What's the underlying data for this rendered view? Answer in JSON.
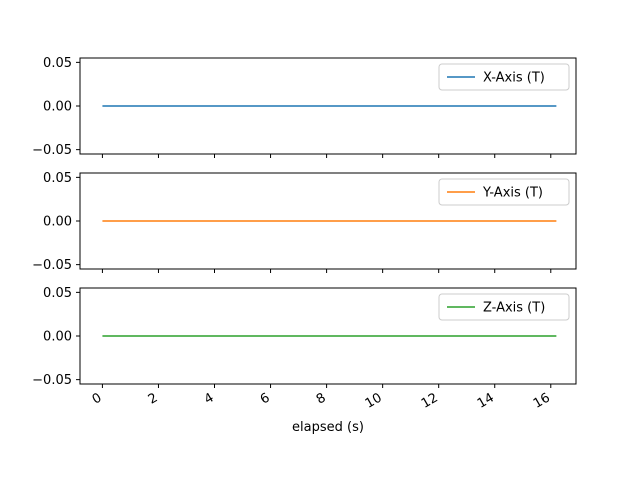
{
  "chart_data": {
    "type": "line",
    "layout": "stacked-subplots-shared-x",
    "xlabel": "elapsed (s)",
    "xlim": [
      -0.8,
      16.9
    ],
    "xticks": [
      0,
      2,
      4,
      6,
      8,
      10,
      12,
      14,
      16
    ],
    "xtick_labels": [
      "0",
      "2",
      "4",
      "6",
      "8",
      "10",
      "12",
      "14",
      "16"
    ],
    "xtick_rotation": 30,
    "legend_position": "top-right",
    "grid": false,
    "subplots": [
      {
        "series_name": "X-Axis (T)",
        "color": "#1f77b4",
        "ylim": [
          -0.055,
          0.055
        ],
        "yticks": [
          -0.05,
          0.0,
          0.05
        ],
        "ytick_labels": [
          "−0.05",
          "0.00",
          "0.05"
        ],
        "x": [
          0,
          16.2
        ],
        "y": [
          0,
          0
        ]
      },
      {
        "series_name": "Y-Axis (T)",
        "color": "#ff7f0e",
        "ylim": [
          -0.055,
          0.055
        ],
        "yticks": [
          -0.05,
          0.0,
          0.05
        ],
        "ytick_labels": [
          "−0.05",
          "0.00",
          "0.05"
        ],
        "x": [
          0,
          16.2
        ],
        "y": [
          0,
          0
        ]
      },
      {
        "series_name": "Z-Axis (T)",
        "color": "#2ca02c",
        "ylim": [
          -0.055,
          0.055
        ],
        "yticks": [
          -0.05,
          0.0,
          0.05
        ],
        "ytick_labels": [
          "−0.05",
          "0.00",
          "0.05"
        ],
        "x": [
          0,
          16.2
        ],
        "y": [
          0,
          0
        ]
      }
    ]
  }
}
